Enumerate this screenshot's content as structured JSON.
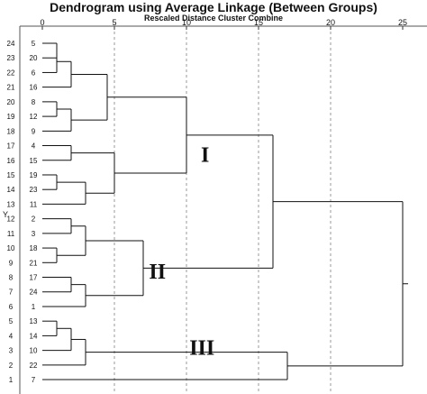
{
  "chart_data": {
    "type": "dendrogram",
    "title": "Dendrogram using Average Linkage (Between Groups)",
    "subtitle": "Rescaled Distance Cluster Combine",
    "ylabel": "Y",
    "xlim": [
      0,
      25
    ],
    "x_ticks": [
      0,
      5,
      10,
      15,
      20,
      25
    ],
    "grid": true,
    "leaves": [
      {
        "case": "5",
        "num": "24"
      },
      {
        "case": "20",
        "num": "23"
      },
      {
        "case": "6",
        "num": "22"
      },
      {
        "case": "16",
        "num": "21"
      },
      {
        "case": "8",
        "num": "20"
      },
      {
        "case": "12",
        "num": "19"
      },
      {
        "case": "9",
        "num": "18"
      },
      {
        "case": "4",
        "num": "17"
      },
      {
        "case": "15",
        "num": "16"
      },
      {
        "case": "19",
        "num": "15"
      },
      {
        "case": "23",
        "num": "14"
      },
      {
        "case": "11",
        "num": "13"
      },
      {
        "case": "2",
        "num": "12"
      },
      {
        "case": "3",
        "num": "11"
      },
      {
        "case": "18",
        "num": "10"
      },
      {
        "case": "21",
        "num": "9"
      },
      {
        "case": "17",
        "num": "8"
      },
      {
        "case": "24",
        "num": "7"
      },
      {
        "case": "1",
        "num": "6"
      },
      {
        "case": "13",
        "num": "5"
      },
      {
        "case": "14",
        "num": "4"
      },
      {
        "case": "10",
        "num": "3"
      },
      {
        "case": "22",
        "num": "2"
      },
      {
        "case": "7",
        "num": "1"
      }
    ],
    "merges": [
      {
        "id": "m1",
        "a": 0,
        "b": 1,
        "height": 1.0
      },
      {
        "id": "m2",
        "a": "m1",
        "b": 2,
        "height": 1.0
      },
      {
        "id": "m3",
        "a": "m2",
        "b": 3,
        "height": 2.0
      },
      {
        "id": "m4",
        "a": 4,
        "b": 5,
        "height": 1.0
      },
      {
        "id": "m5",
        "a": "m4",
        "b": 6,
        "height": 2.0
      },
      {
        "id": "m6",
        "a": "m3",
        "b": "m5",
        "height": 4.5
      },
      {
        "id": "m7",
        "a": 7,
        "b": 8,
        "height": 2.0
      },
      {
        "id": "m8",
        "a": 9,
        "b": 10,
        "height": 1.0
      },
      {
        "id": "m9",
        "a": "m8",
        "b": 11,
        "height": 3.0
      },
      {
        "id": "m10",
        "a": "m7",
        "b": "m9",
        "height": 5.0
      },
      {
        "id": "m11",
        "a": "m6",
        "b": "m10",
        "height": 10.0
      },
      {
        "id": "m12",
        "a": 12,
        "b": 13,
        "height": 2.0
      },
      {
        "id": "m13",
        "a": 14,
        "b": 15,
        "height": 1.0
      },
      {
        "id": "m14",
        "a": "m12",
        "b": "m13",
        "height": 3.0
      },
      {
        "id": "m15",
        "a": 16,
        "b": 17,
        "height": 2.0
      },
      {
        "id": "m16",
        "a": "m15",
        "b": 18,
        "height": 3.0
      },
      {
        "id": "m17",
        "a": "m14",
        "b": "m16",
        "height": 7.0
      },
      {
        "id": "m18",
        "a": "m11",
        "b": "m17",
        "height": 16.0
      },
      {
        "id": "m19",
        "a": 19,
        "b": 20,
        "height": 1.0
      },
      {
        "id": "m20",
        "a": "m19",
        "b": 21,
        "height": 2.0
      },
      {
        "id": "m21",
        "a": "m20",
        "b": 22,
        "height": 3.0
      },
      {
        "id": "m22",
        "a": "m21",
        "b": 23,
        "height": 17.0
      },
      {
        "id": "m23",
        "a": "m18",
        "b": "m22",
        "height": 25.0
      }
    ],
    "annotations": [
      {
        "text": "I",
        "x": 11.0,
        "y_leaf": 7.6
      },
      {
        "text": "II",
        "x": 7.4,
        "y_leaf": 15.6
      },
      {
        "text": "III",
        "x": 10.2,
        "y_leaf": 20.8
      }
    ]
  }
}
